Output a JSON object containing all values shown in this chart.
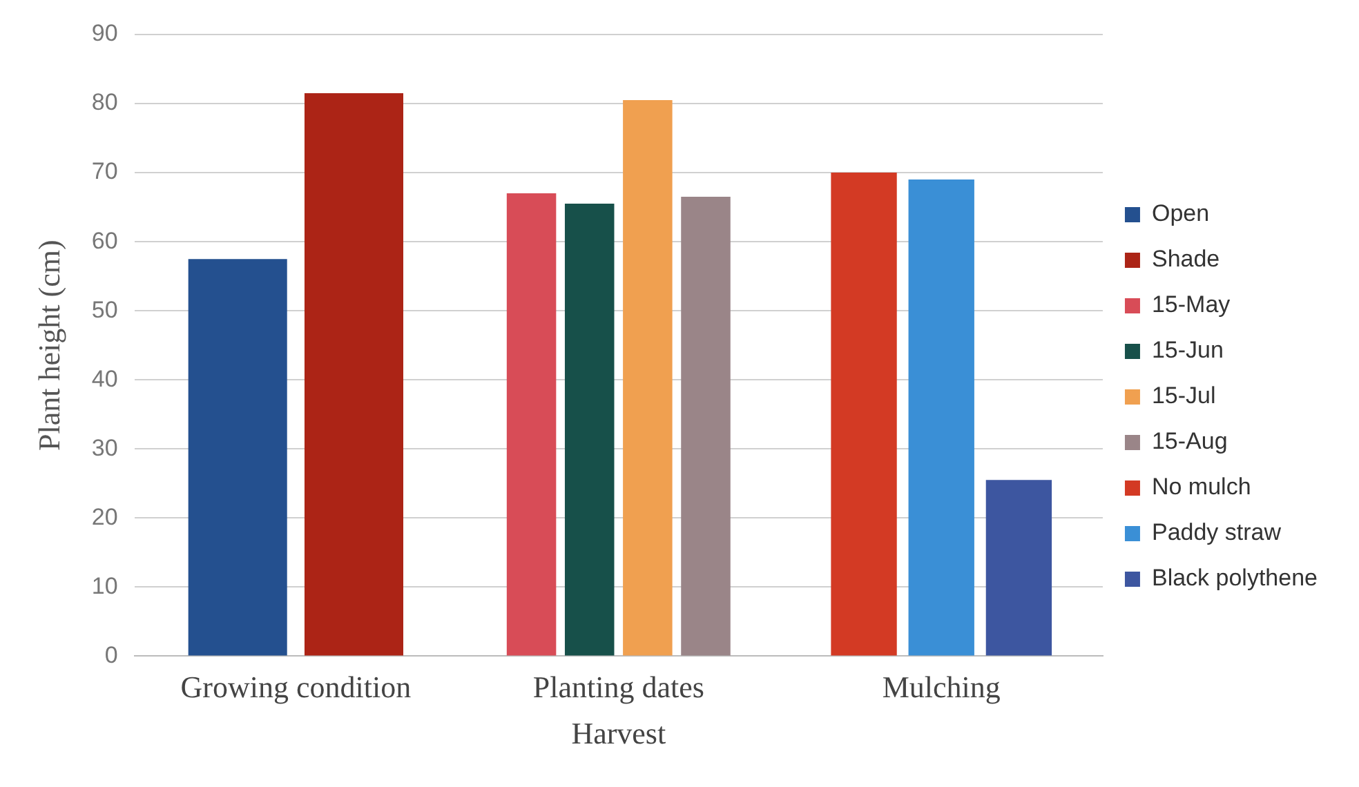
{
  "chart_data": {
    "type": "bar",
    "xlabel": "Harvest",
    "ylabel": "Plant height (cm)",
    "categories": [
      "Growing condition",
      "Planting dates",
      "Mulching"
    ],
    "series": [
      {
        "name": "Open",
        "color": "#24508f",
        "values": [
          57.5,
          null,
          null
        ]
      },
      {
        "name": "Shade",
        "color": "#ac2416",
        "values": [
          81.5,
          null,
          null
        ]
      },
      {
        "name": "15-May",
        "color": "#d84c57",
        "values": [
          null,
          67,
          null
        ]
      },
      {
        "name": "15-Jun",
        "color": "#17504a",
        "values": [
          null,
          65.5,
          null
        ]
      },
      {
        "name": "15-Jul",
        "color": "#f0a050",
        "values": [
          null,
          80.5,
          null
        ]
      },
      {
        "name": "15-Aug",
        "color": "#9a8588",
        "values": [
          null,
          66.5,
          null
        ]
      },
      {
        "name": "No mulch",
        "color": "#d33a24",
        "values": [
          null,
          null,
          70
        ]
      },
      {
        "name": "Paddy straw",
        "color": "#3a8fd6",
        "values": [
          null,
          null,
          69
        ]
      },
      {
        "name": "Black polythene",
        "color": "#3d56a0",
        "values": [
          null,
          null,
          25.5
        ]
      }
    ],
    "ylim": [
      0,
      90
    ],
    "yticks": [
      0,
      10,
      20,
      30,
      40,
      50,
      60,
      70,
      80,
      90
    ],
    "grid": "y",
    "legend": "right"
  }
}
